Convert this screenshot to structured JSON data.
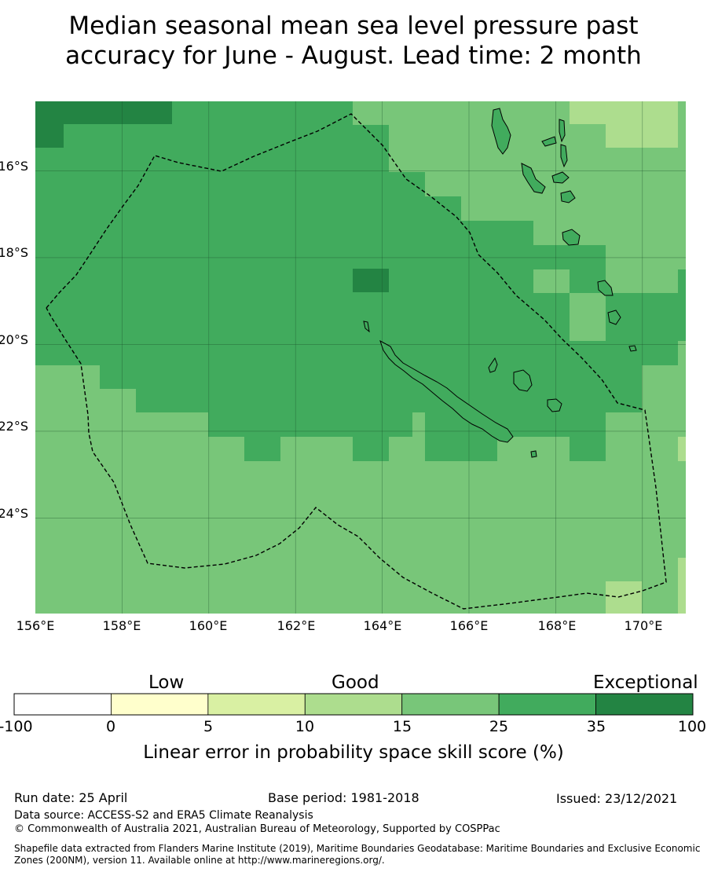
{
  "title": {
    "line1": "Median seasonal mean sea level pressure past",
    "line2": "accuracy for June - August. Lead time: 2 month"
  },
  "map": {
    "lon_range": [
      156.0,
      171.0
    ],
    "lat_range": [
      -26.2,
      -14.4
    ],
    "lat_labels": [
      "16°S",
      "18°S",
      "20°S",
      "22°S",
      "24°S"
    ],
    "lon_labels": [
      "156°E",
      "158°E",
      "160°E",
      "162°E",
      "164°E",
      "166°E",
      "168°E",
      "170°E"
    ],
    "grid": true,
    "boundary_line": "dashed",
    "palette": {
      "band_0_5": "#ffffcc",
      "band_5_10": "#d9f0a3",
      "band_10_15": "#addd8e",
      "band_15_25": "#78c679",
      "band_25_35": "#41ab5d",
      "band_35_100": "#238443"
    }
  },
  "legend": {
    "categories": [
      "Low",
      "Good",
      "Exceptional"
    ],
    "ticks": [
      "-100",
      "0",
      "5",
      "10",
      "15",
      "25",
      "35",
      "100"
    ],
    "colors": [
      "#ffffff",
      "#ffffcc",
      "#d9f0a3",
      "#addd8e",
      "#78c679",
      "#41ab5d",
      "#238443"
    ],
    "label": "Linear error in probability space skill score (%)"
  },
  "footer": {
    "run_date": "Run date: 25 April",
    "base_period": "Base period: 1981-2018",
    "issued": "Issued: 23/12/2021",
    "data_source": "Data source: ACCESS-S2 and ERA5 Climate Reanalysis",
    "copyright": "© Commonwealth of Australia 2021, Australian Bureau of Meteorology, Supported by COSPPac",
    "shapefile_line1": "Shapefile data extracted from Flanders Marine Institute (2019), Maritime Boundaries Geodatabase: Maritime Boundaries and Exclusive Economic",
    "shapefile_line2": "Zones (200NM), version 11. Available online at http://www.marineregions.org/."
  }
}
